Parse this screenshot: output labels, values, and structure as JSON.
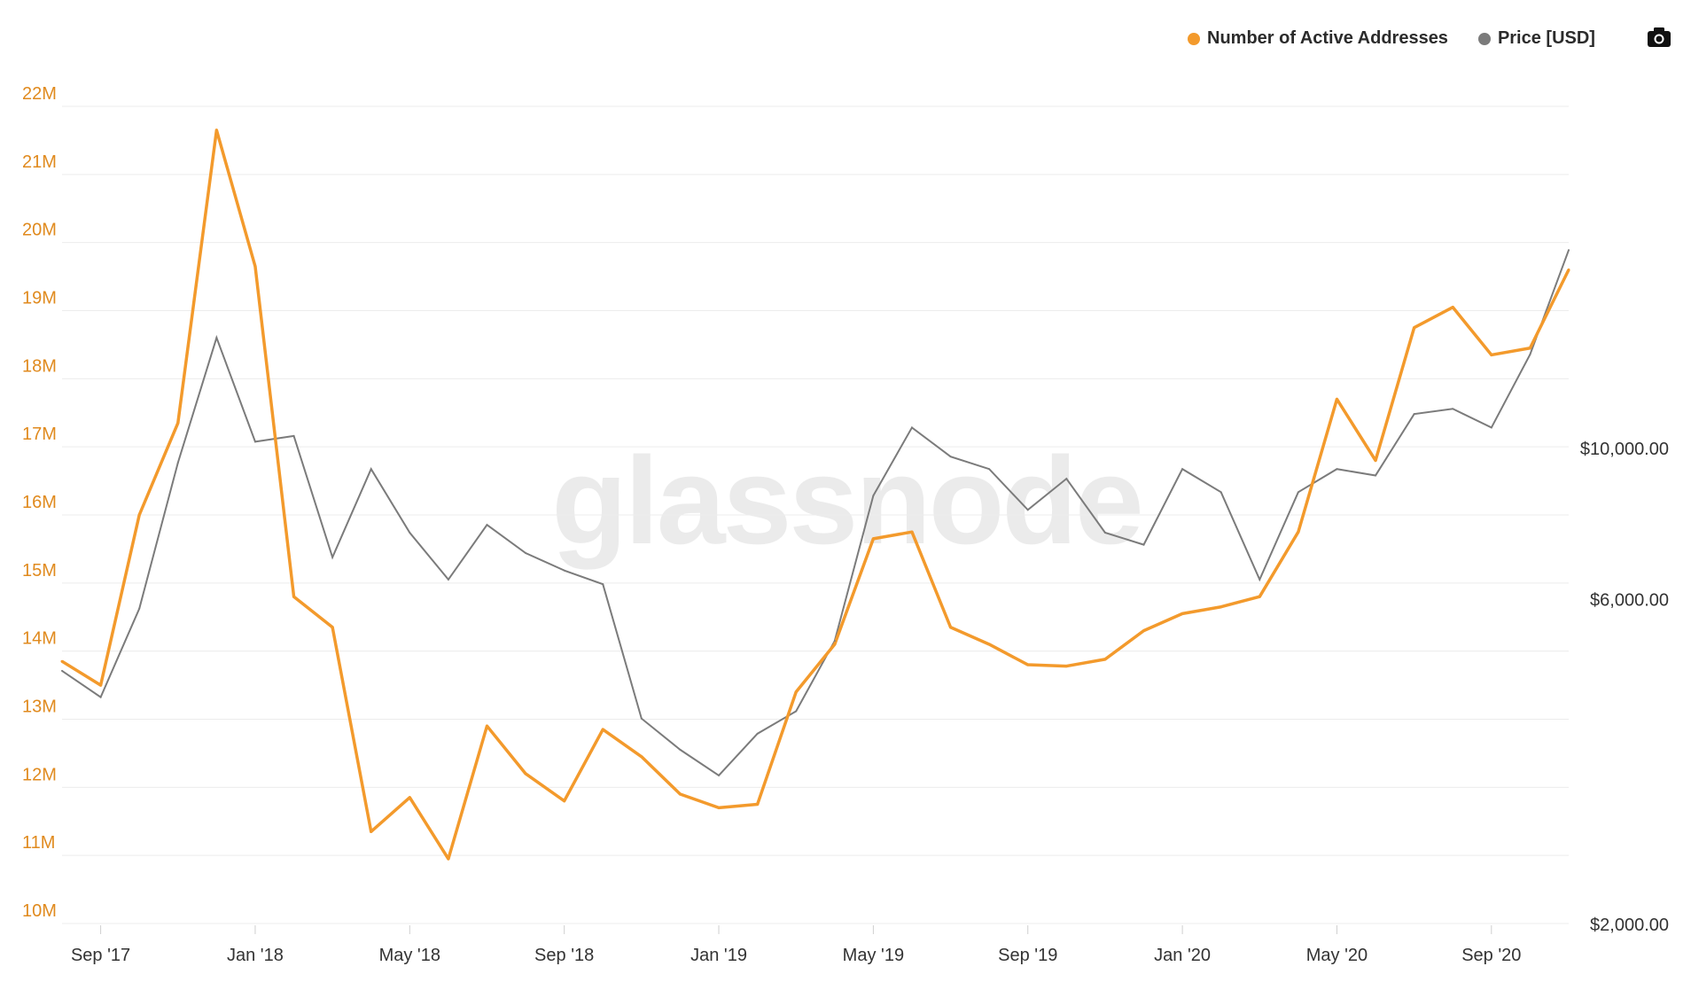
{
  "legend": {
    "active_label": "Number of Active Addresses",
    "price_label": "Price [USD]"
  },
  "watermark": "glassnode",
  "colors": {
    "active": "#f39a2c",
    "price": "#7b7b7b",
    "grid": "#ececec",
    "left_tick": "#e08a1e"
  },
  "icons": {
    "export": "camera-icon"
  },
  "chart_data": {
    "type": "line",
    "x": [
      "2017-08",
      "2017-09",
      "2017-10",
      "2017-11",
      "2017-12",
      "2018-01",
      "2018-02",
      "2018-03",
      "2018-04",
      "2018-05",
      "2018-06",
      "2018-07",
      "2018-08",
      "2018-09",
      "2018-10",
      "2018-11",
      "2018-12",
      "2019-01",
      "2019-02",
      "2019-03",
      "2019-04",
      "2019-05",
      "2019-06",
      "2019-07",
      "2019-08",
      "2019-09",
      "2019-10",
      "2019-11",
      "2019-12",
      "2020-01",
      "2020-02",
      "2020-03",
      "2020-04",
      "2020-05",
      "2020-06",
      "2020-07",
      "2020-08",
      "2020-09",
      "2020-10",
      "2020-11"
    ],
    "x_tick_labels": [
      "Sep '17",
      "Jan '18",
      "May '18",
      "Sep '18",
      "Jan '19",
      "May '19",
      "Sep '19",
      "Jan '20",
      "May '20",
      "Sep '20"
    ],
    "x_tick_values": [
      "2017-09",
      "2018-01",
      "2018-05",
      "2018-09",
      "2019-01",
      "2019-05",
      "2019-09",
      "2020-01",
      "2020-05",
      "2020-09"
    ],
    "series": [
      {
        "name": "Number of Active Addresses",
        "axis": "left",
        "values": [
          13.85,
          13.5,
          16.0,
          17.35,
          21.65,
          19.65,
          14.8,
          14.35,
          11.35,
          11.85,
          10.95,
          12.9,
          12.2,
          11.8,
          12.85,
          12.45,
          11.9,
          11.7,
          11.75,
          13.4,
          14.1,
          15.65,
          15.75,
          14.35,
          14.1,
          13.8,
          13.78,
          13.88,
          14.3,
          14.55,
          14.65,
          14.8,
          15.75,
          17.7,
          16.8,
          18.75,
          19.05,
          18.35,
          18.45,
          19.6
        ]
      },
      {
        "name": "Price [USD]",
        "axis": "right",
        "values": [
          4700,
          4300,
          5800,
          9500,
          14500,
          10200,
          10400,
          6900,
          9300,
          7500,
          6400,
          7700,
          7000,
          6600,
          6300,
          4000,
          3600,
          3300,
          3800,
          4100,
          5200,
          8500,
          10700,
          9700,
          9300,
          8100,
          9000,
          7500,
          7200,
          9300,
          8600,
          6400,
          8600,
          9300,
          9100,
          11200,
          11400,
          10700,
          13700,
          19500
        ]
      }
    ],
    "y_left": {
      "ticks": [
        10,
        11,
        12,
        13,
        14,
        15,
        16,
        17,
        18,
        19,
        20,
        21,
        22
      ],
      "tick_labels": [
        "10M",
        "11M",
        "12M",
        "13M",
        "14M",
        "15M",
        "16M",
        "17M",
        "18M",
        "19M",
        "20M",
        "21M",
        "22M"
      ],
      "range": [
        10,
        22
      ]
    },
    "y_right": {
      "scale": "log",
      "ticks": [
        2000,
        6000,
        10000
      ],
      "tick_labels": [
        "$2,000.00",
        "$6,000.00",
        "$10,000.00"
      ]
    },
    "grid": true,
    "legend_position": "top-right"
  }
}
